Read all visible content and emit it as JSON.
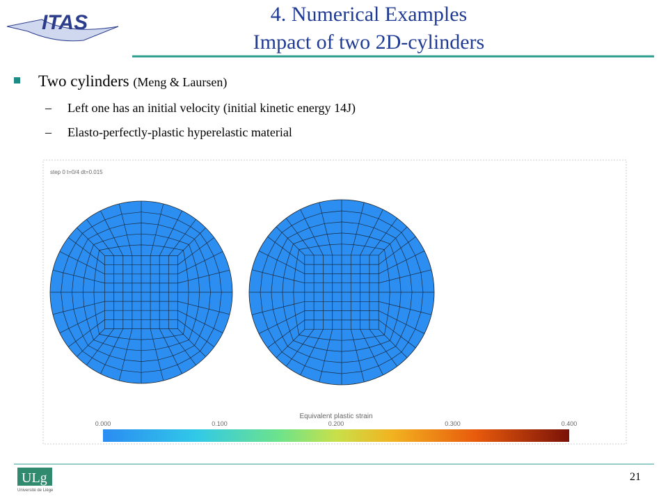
{
  "header": {
    "logo": "ITAS",
    "title_line1": "4. Numerical Examples",
    "title_line2": "Impact of two 2D-cylinders"
  },
  "bullets": [
    {
      "text": "Two cylinders",
      "note": "(Meng & Laursen)",
      "sub": [
        "Left one has an initial velocity (initial kinetic energy 14J)",
        "Elasto-perfectly-plastic hyperelastic material"
      ]
    }
  ],
  "figure": {
    "step_label": "step 0  t=0/4  dt=0.015",
    "colorbar_title": "Equivalent plastic strain",
    "colorbar_labels": [
      "0.000",
      "0.100",
      "0.200",
      "0.300",
      "0.400"
    ]
  },
  "footer": {
    "logo": "ULg",
    "logo_sub": "Université de Liège",
    "page_number": "21"
  }
}
